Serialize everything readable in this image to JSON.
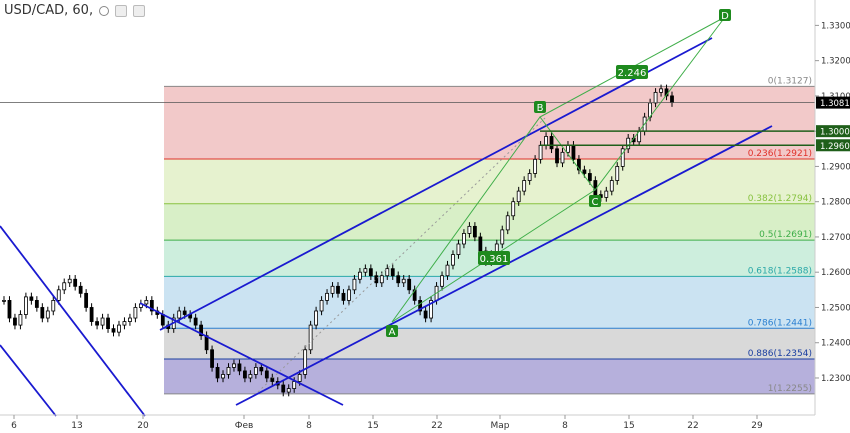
{
  "header": {
    "symbol": "USD/CAD, 60,",
    "eye_icon": "eye-icon",
    "settings_icon": "gear-icon",
    "close_icon": "close-icon"
  },
  "chart_data": {
    "type": "candlestick",
    "title": "USD/CAD, 60,",
    "ylim": [
      1.2195,
      1.3372
    ],
    "y_ticks": [
      "1.3300",
      "1.3200",
      "1.3100",
      "1.3000",
      "1.2900",
      "1.2800",
      "1.2700",
      "1.2600",
      "1.2500",
      "1.2400",
      "1.2300"
    ],
    "x_tick_labels": [
      "6",
      "13",
      "20",
      "Фев",
      "8",
      "15",
      "22",
      "Мар",
      "8",
      "15",
      "22",
      "29"
    ],
    "price_flags": [
      {
        "label": "1.3081",
        "value": 1.3081,
        "color": "#000000"
      },
      {
        "label": "1.3000",
        "value": 1.3,
        "color": "#1f5f1a"
      },
      {
        "label": "1.2960",
        "value": 1.296,
        "color": "#1f5f1a"
      }
    ],
    "fibonacci": [
      {
        "ratio": "0",
        "label": "0(1.3127)",
        "price": 1.3127,
        "color": "#888888"
      },
      {
        "ratio": "0.236",
        "label": "0.236(1.2921)",
        "price": 1.2921,
        "color": "#e0312a"
      },
      {
        "ratio": "0.382",
        "label": "0.382(1.2794)",
        "price": 1.2794,
        "color": "#88c240"
      },
      {
        "ratio": "0.5",
        "label": "0.5(1.2691)",
        "price": 1.2691,
        "color": "#3fae49"
      },
      {
        "ratio": "0.618",
        "label": "0.618(1.2588)",
        "price": 1.2588,
        "color": "#2aa8a8"
      },
      {
        "ratio": "0.786",
        "label": "0.786(1.2441)",
        "price": 1.2441,
        "color": "#2a7fd0"
      },
      {
        "ratio": "0.886",
        "label": "0.886(1.2354)",
        "price": 1.2354,
        "color": "#1a3ea0"
      },
      {
        "ratio": "1",
        "label": "1(1.2255)",
        "price": 1.2255,
        "color": "#888888"
      }
    ],
    "fib_zone_colors": [
      "#f2c9c9",
      "#e6f2cf",
      "#d8efc7",
      "#cdeedd",
      "#cbe3f2",
      "#d9d9d9",
      "#b6b0dc"
    ],
    "abcd_labels": [
      {
        "name": "A",
        "price": 1.2452
      },
      {
        "name": "B",
        "price": 1.2985
      },
      {
        "name": "C",
        "price": 1.2812
      },
      {
        "name": "D",
        "price": 1.333
      }
    ],
    "ratio_labels": [
      "0.361",
      "2.246"
    ],
    "close_series": [
      1.252,
      1.247,
      1.245,
      1.248,
      1.253,
      1.252,
      1.25,
      1.247,
      1.249,
      1.252,
      1.255,
      1.257,
      1.258,
      1.256,
      1.254,
      1.25,
      1.246,
      1.245,
      1.247,
      1.244,
      1.243,
      1.245,
      1.246,
      1.247,
      1.25,
      1.251,
      1.252,
      1.249,
      1.248,
      1.245,
      1.244,
      1.247,
      1.249,
      1.248,
      1.247,
      1.245,
      1.242,
      1.238,
      1.233,
      1.23,
      1.231,
      1.233,
      1.234,
      1.232,
      1.23,
      1.231,
      1.233,
      1.232,
      1.23,
      1.229,
      1.228,
      1.226,
      1.227,
      1.229,
      1.231,
      1.238,
      1.245,
      1.249,
      1.252,
      1.254,
      1.256,
      1.254,
      1.252,
      1.255,
      1.258,
      1.26,
      1.261,
      1.259,
      1.257,
      1.259,
      1.261,
      1.259,
      1.257,
      1.258,
      1.255,
      1.252,
      1.249,
      1.247,
      1.252,
      1.256,
      1.259,
      1.262,
      1.265,
      1.268,
      1.271,
      1.273,
      1.27,
      1.266,
      1.263,
      1.265,
      1.268,
      1.272,
      1.276,
      1.28,
      1.283,
      1.286,
      1.288,
      1.292,
      1.296,
      1.2985,
      1.295,
      1.291,
      1.294,
      1.296,
      1.292,
      1.289,
      1.288,
      1.286,
      1.282,
      1.2812,
      1.283,
      1.286,
      1.29,
      1.295,
      1.298,
      1.297,
      1.3,
      1.304,
      1.308,
      1.311,
      1.312,
      1.31,
      1.3081
    ],
    "grid": false
  }
}
